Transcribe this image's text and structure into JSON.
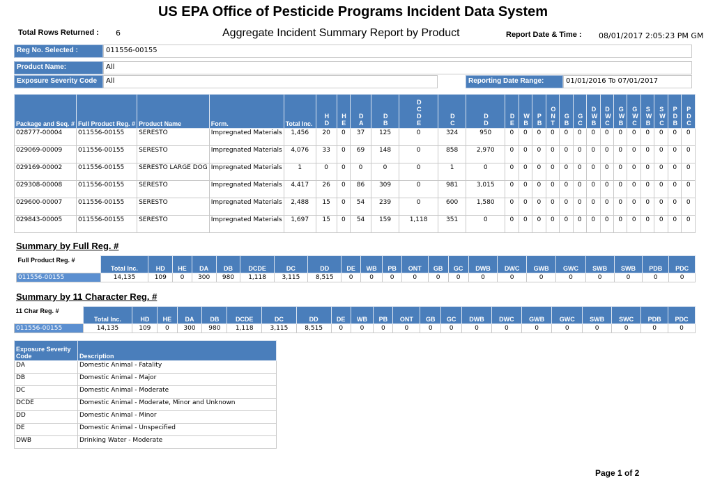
{
  "header": {
    "title": "US EPA Office of Pesticide Programs Incident Data System",
    "total_rows_label": "Total Rows Returned :",
    "total_rows": "6",
    "subtitle": "Aggregate Incident Summary Report by Product",
    "report_date_label": "Report Date & Time :",
    "report_date": "08/01/2017 2:05:23 PM GM"
  },
  "filters": {
    "reg_no": {
      "label": "Reg No. Selected :",
      "value": "011556-00155"
    },
    "product_name": {
      "label": "Product Name:",
      "value": "All"
    },
    "severity": {
      "label": "Exposure Severity Code",
      "value": "All"
    },
    "date_range": {
      "label": "Reporting Date Range:",
      "value": "01/01/2016 To 07/01/2017"
    }
  },
  "table": {
    "columns": [
      "Package and Seq. #",
      "Full Product Reg. #",
      "Product Name",
      "Form.",
      "Total Inc.",
      "HD",
      "HE",
      "DA",
      "DB",
      "DCDE",
      "DC",
      "DD",
      "DE",
      "WB",
      "PB",
      "ONT",
      "GB",
      "GC",
      "DWB",
      "DWC",
      "GWB",
      "GWC",
      "SWB",
      "SWC",
      "PDB",
      "PDC"
    ],
    "rows": [
      [
        "028777-00004",
        "011556-00155",
        "SERESTO",
        "Impregnated Materials",
        "1,456",
        "20",
        "0",
        "37",
        "125",
        "0",
        "324",
        "950",
        "0",
        "0",
        "0",
        "0",
        "0",
        "0",
        "0",
        "0",
        "0",
        "0",
        "0",
        "0",
        "0",
        "0"
      ],
      [
        "029069-00009",
        "011556-00155",
        "SERESTO",
        "Impregnated Materials",
        "4,076",
        "33",
        "0",
        "69",
        "148",
        "0",
        "858",
        "2,970",
        "0",
        "0",
        "0",
        "0",
        "0",
        "0",
        "0",
        "0",
        "0",
        "0",
        "0",
        "0",
        "0",
        "0"
      ],
      [
        "029169-00002",
        "011556-00155",
        "SERESTO LARGE DOG",
        "Impregnated Materials",
        "1",
        "0",
        "0",
        "0",
        "0",
        "0",
        "1",
        "0",
        "0",
        "0",
        "0",
        "0",
        "0",
        "0",
        "0",
        "0",
        "0",
        "0",
        "0",
        "0",
        "0",
        "0"
      ],
      [
        "029308-00008",
        "011556-00155",
        "SERESTO",
        "Impregnated Materials",
        "4,417",
        "26",
        "0",
        "86",
        "309",
        "0",
        "981",
        "3,015",
        "0",
        "0",
        "0",
        "0",
        "0",
        "0",
        "0",
        "0",
        "0",
        "0",
        "0",
        "0",
        "0",
        "0"
      ],
      [
        "029600-00007",
        "011556-00155",
        "SERESTO",
        "Impregnated Materials",
        "2,488",
        "15",
        "0",
        "54",
        "239",
        "0",
        "600",
        "1,580",
        "0",
        "0",
        "0",
        "0",
        "0",
        "0",
        "0",
        "0",
        "0",
        "0",
        "0",
        "0",
        "0",
        "0"
      ],
      [
        "029843-00005",
        "011556-00155",
        "SERESTO",
        "Impregnated Materials",
        "1,697",
        "15",
        "0",
        "54",
        "159",
        "1,118",
        "351",
        "0",
        "0",
        "0",
        "0",
        "0",
        "0",
        "0",
        "0",
        "0",
        "0",
        "0",
        "0",
        "0",
        "0",
        "0"
      ]
    ]
  },
  "summary_full": {
    "heading": "Summary by Full Reg. #",
    "key_label": "Full Product Reg. #",
    "columns": [
      "Total Inc.",
      "HD",
      "HE",
      "DA",
      "DB",
      "DCDE",
      "DC",
      "DD",
      "DE",
      "WB",
      "PB",
      "ONT",
      "GB",
      "GC",
      "DWB",
      "DWC",
      "GWB",
      "GWC",
      "SWB",
      "SWB",
      "PDB",
      "PDC"
    ],
    "row": [
      "011556-00155",
      "14,135",
      "109",
      "0",
      "300",
      "980",
      "1,118",
      "3,115",
      "8,515",
      "0",
      "0",
      "0",
      "0",
      "0",
      "0",
      "0",
      "0",
      "0",
      "0",
      "0",
      "0",
      "0",
      "0"
    ]
  },
  "summary_11": {
    "heading": "Summary by 11 Character Reg. #",
    "key_label": "11 Char Reg. #",
    "columns": [
      "Total Inc.",
      "HD",
      "HE",
      "DA",
      "DB",
      "DCDE",
      "DC",
      "DD",
      "DE",
      "WB",
      "PB",
      "ONT",
      "GB",
      "GC",
      "DWB",
      "DWC",
      "GWB",
      "GWC",
      "SWB",
      "SWC",
      "PDB",
      "PDC"
    ],
    "row": [
      "011556-00155",
      "14,135",
      "109",
      "0",
      "300",
      "980",
      "1,118",
      "3,115",
      "8,515",
      "0",
      "0",
      "0",
      "0",
      "0",
      "0",
      "0",
      "0",
      "0",
      "0",
      "0",
      "0",
      "0",
      "0"
    ]
  },
  "legend": {
    "columns": [
      "Exposure Severity Code",
      "Description"
    ],
    "rows": [
      [
        "DA",
        "Domestic Animal - Fatality"
      ],
      [
        "DB",
        "Domestic Animal - Major"
      ],
      [
        "DC",
        "Domestic Animal - Moderate"
      ],
      [
        "DCDE",
        "Domestic Animal - Moderate, Minor and Unknown"
      ],
      [
        "DD",
        "Domestic Animal - Minor"
      ],
      [
        "DE",
        "Domestic Animal - Unspecified"
      ],
      [
        "DWB",
        "Drinking Water - Moderate"
      ]
    ]
  },
  "footer": {
    "page": "Page 1 of 2"
  }
}
